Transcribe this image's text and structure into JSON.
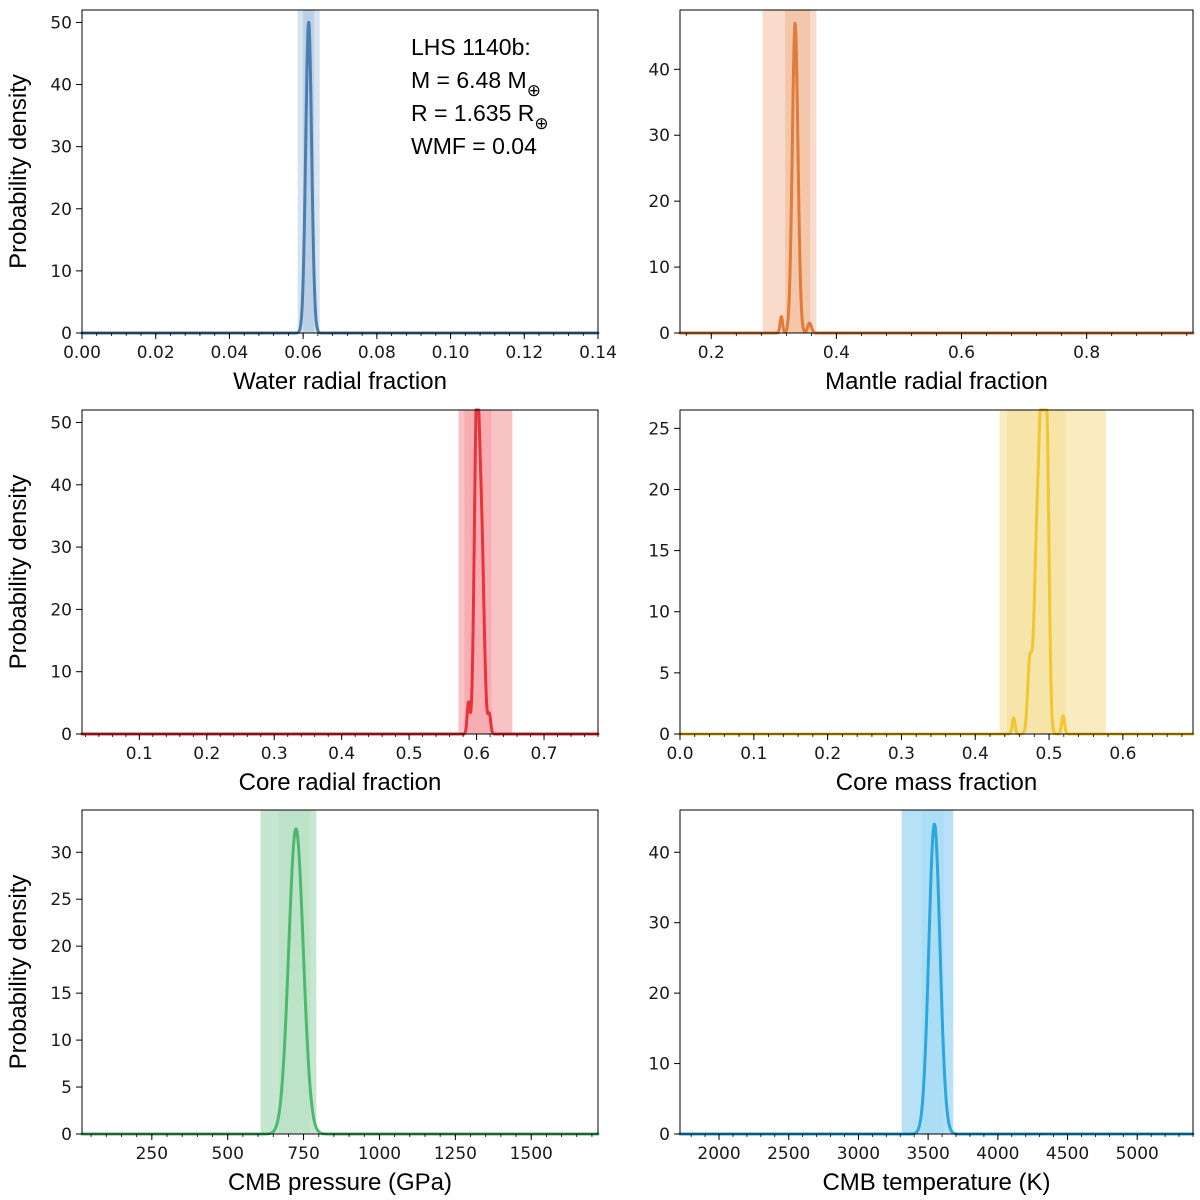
{
  "figure": {
    "annotation": {
      "title": "LHS 1140b:",
      "mass_prefix": "M = 6.48 M",
      "mass_sub": "⊕",
      "radius_prefix": "R = 1.635 R",
      "radius_sub": "⊕",
      "wmf": "WMF = 0.04"
    }
  },
  "chart_data": [
    {
      "type": "line",
      "name": "water-radial-fraction",
      "xlabel": "Water radial fraction",
      "ylabel": "Probability density",
      "xlim": [
        0.0,
        0.14
      ],
      "ylim": [
        0,
        52
      ],
      "xticks": [
        0.0,
        0.02,
        0.04,
        0.06,
        0.08,
        0.1,
        0.12,
        0.14
      ],
      "xtick_labels": [
        "0.00",
        "0.02",
        "0.04",
        "0.06",
        "0.08",
        "0.10",
        "0.12",
        "0.14"
      ],
      "yticks": [
        0,
        10,
        20,
        30,
        40,
        50
      ],
      "ytick_labels": [
        "0",
        "10",
        "20",
        "30",
        "40",
        "50"
      ],
      "color": "#4a7eb0",
      "band_color": "#b6cde3",
      "bands": [
        {
          "from": 0.0585,
          "to": 0.0645,
          "opacity": 0.55
        },
        {
          "from": 0.06,
          "to": 0.063,
          "opacity": 0.85
        }
      ],
      "peaks": [
        {
          "mu": 0.0615,
          "sigma": 0.0008,
          "amp": 50
        }
      ]
    },
    {
      "type": "line",
      "name": "mantle-radial-fraction",
      "xlabel": "Mantle radial fraction",
      "ylabel": "",
      "xlim": [
        0.15,
        0.97
      ],
      "ylim": [
        0,
        49
      ],
      "xticks": [
        0.2,
        0.4,
        0.6,
        0.8
      ],
      "xtick_labels": [
        "0.2",
        "0.4",
        "0.6",
        "0.8"
      ],
      "yticks": [
        0,
        10,
        20,
        30,
        40
      ],
      "ytick_labels": [
        "0",
        "10",
        "20",
        "30",
        "40"
      ],
      "color": "#e07b3a",
      "band_color": "#f3c3a6",
      "bands": [
        {
          "from": 0.282,
          "to": 0.368,
          "opacity": 0.6
        },
        {
          "from": 0.318,
          "to": 0.358,
          "opacity": 0.85
        }
      ],
      "peaks": [
        {
          "mu": 0.334,
          "sigma": 0.0045,
          "amp": 47
        },
        {
          "mu": 0.312,
          "sigma": 0.002,
          "amp": 2.5
        },
        {
          "mu": 0.357,
          "sigma": 0.003,
          "amp": 1.5
        }
      ]
    },
    {
      "type": "line",
      "name": "core-radial-fraction",
      "xlabel": "Core radial fraction",
      "ylabel": "Probability density",
      "xlim": [
        0.015,
        0.78
      ],
      "ylim": [
        0,
        52
      ],
      "xticks": [
        0.1,
        0.2,
        0.3,
        0.4,
        0.5,
        0.6,
        0.7
      ],
      "xtick_labels": [
        "0.1",
        "0.2",
        "0.3",
        "0.4",
        "0.5",
        "0.6",
        "0.7"
      ],
      "yticks": [
        0,
        10,
        20,
        30,
        40,
        50
      ],
      "ytick_labels": [
        "0",
        "10",
        "20",
        "30",
        "40",
        "50"
      ],
      "color": "#e8333b",
      "band_color": "#f7a9ad",
      "bands": [
        {
          "from": 0.573,
          "to": 0.653,
          "opacity": 0.7
        },
        {
          "from": 0.582,
          "to": 0.622,
          "opacity": 0.85
        }
      ],
      "peaks": [
        {
          "mu": 0.6,
          "sigma": 0.0035,
          "amp": 49
        },
        {
          "mu": 0.607,
          "sigma": 0.004,
          "amp": 32
        },
        {
          "mu": 0.588,
          "sigma": 0.002,
          "amp": 5
        },
        {
          "mu": 0.619,
          "sigma": 0.002,
          "amp": 3
        }
      ]
    },
    {
      "type": "line",
      "name": "core-mass-fraction",
      "xlabel": "Core mass fraction",
      "ylabel": "",
      "xlim": [
        0.0,
        0.695
      ],
      "ylim": [
        0,
        26.5
      ],
      "xticks": [
        0.0,
        0.1,
        0.2,
        0.3,
        0.4,
        0.5,
        0.6
      ],
      "xtick_labels": [
        "0.0",
        "0.1",
        "0.2",
        "0.3",
        "0.4",
        "0.5",
        "0.6"
      ],
      "yticks": [
        0,
        5,
        10,
        15,
        20,
        25
      ],
      "ytick_labels": [
        "0",
        "5",
        "10",
        "15",
        "20",
        "25"
      ],
      "color": "#f2c631",
      "band_color": "#f6e2a0",
      "bands": [
        {
          "from": 0.433,
          "to": 0.577,
          "opacity": 0.65
        },
        {
          "from": 0.443,
          "to": 0.523,
          "opacity": 0.75
        }
      ],
      "peaks": [
        {
          "mu": 0.483,
          "sigma": 0.0035,
          "amp": 14
        },
        {
          "mu": 0.49,
          "sigma": 0.0035,
          "amp": 25.5
        },
        {
          "mu": 0.497,
          "sigma": 0.003,
          "amp": 23.5
        },
        {
          "mu": 0.474,
          "sigma": 0.003,
          "amp": 6
        },
        {
          "mu": 0.452,
          "sigma": 0.002,
          "amp": 1.3
        },
        {
          "mu": 0.519,
          "sigma": 0.002,
          "amp": 1.5
        }
      ]
    },
    {
      "type": "line",
      "name": "cmb-pressure",
      "xlabel": "CMB pressure (GPa)",
      "ylabel": "Probability density",
      "xlim": [
        20,
        1720
      ],
      "ylim": [
        0,
        34.5
      ],
      "xticks": [
        250,
        500,
        750,
        1000,
        1250,
        1500
      ],
      "xtick_labels": [
        "250",
        "500",
        "750",
        "1000",
        "1250",
        "1500"
      ],
      "yticks": [
        0,
        5,
        10,
        15,
        20,
        25,
        30
      ],
      "ytick_labels": [
        "0",
        "5",
        "10",
        "15",
        "20",
        "25",
        "30"
      ],
      "color": "#4cb96e",
      "band_color": "#b8e0c4",
      "bands": [
        {
          "from": 608,
          "to": 792,
          "opacity": 0.8
        },
        {
          "from": 668,
          "to": 772,
          "opacity": 0.7
        }
      ],
      "peaks": [
        {
          "mu": 725,
          "sigma": 24,
          "amp": 32.5
        }
      ]
    },
    {
      "type": "line",
      "name": "cmb-temperature",
      "xlabel": "CMB temperature (K)",
      "ylabel": "",
      "xlim": [
        1720,
        5400
      ],
      "ylim": [
        0,
        46
      ],
      "xticks": [
        2000,
        2500,
        3000,
        3500,
        4000,
        4500,
        5000
      ],
      "xtick_labels": [
        "2000",
        "2500",
        "3000",
        "3500",
        "4000",
        "4500",
        "5000"
      ],
      "yticks": [
        0,
        10,
        20,
        30,
        40
      ],
      "ytick_labels": [
        "0",
        "10",
        "20",
        "30",
        "40"
      ],
      "color": "#2ba6df",
      "band_color": "#a9dcf5",
      "bands": [
        {
          "from": 3310,
          "to": 3680,
          "opacity": 0.85
        },
        {
          "from": 3455,
          "to": 3610,
          "opacity": 0.85
        }
      ],
      "peaks": [
        {
          "mu": 3545,
          "sigma": 40,
          "amp": 44
        }
      ]
    }
  ]
}
